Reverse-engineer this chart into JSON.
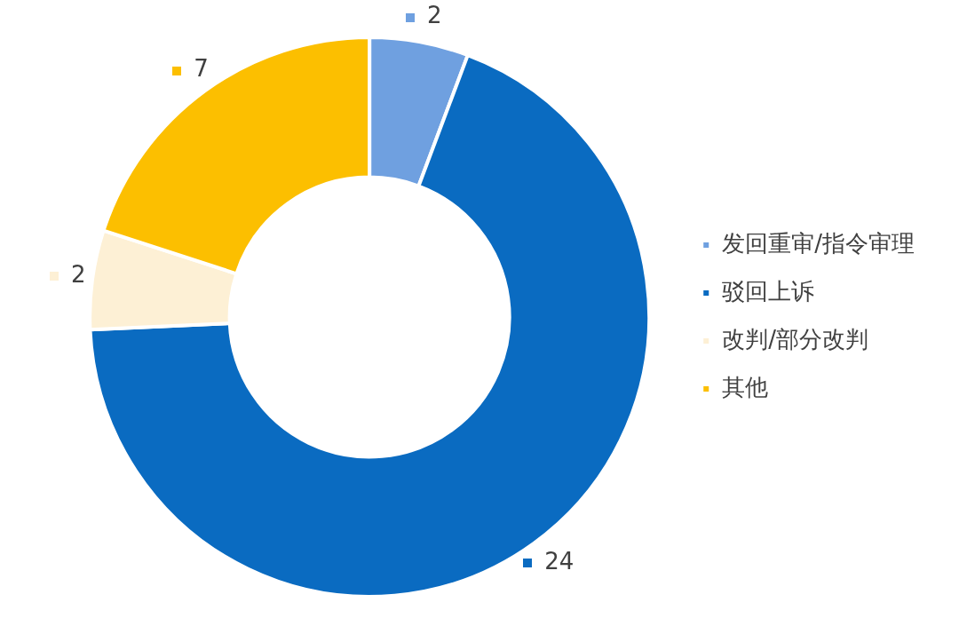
{
  "chart_data": {
    "type": "donut",
    "categories": [
      "发回重审/指令审理",
      "驳回上诉",
      "改判/部分改判",
      "其他"
    ],
    "values": [
      2,
      24,
      2,
      7
    ],
    "colors": [
      "#6fa0e0",
      "#0a6bc1",
      "#fdf0d5",
      "#fcbf00"
    ],
    "data_labels": true,
    "legend": "right"
  }
}
